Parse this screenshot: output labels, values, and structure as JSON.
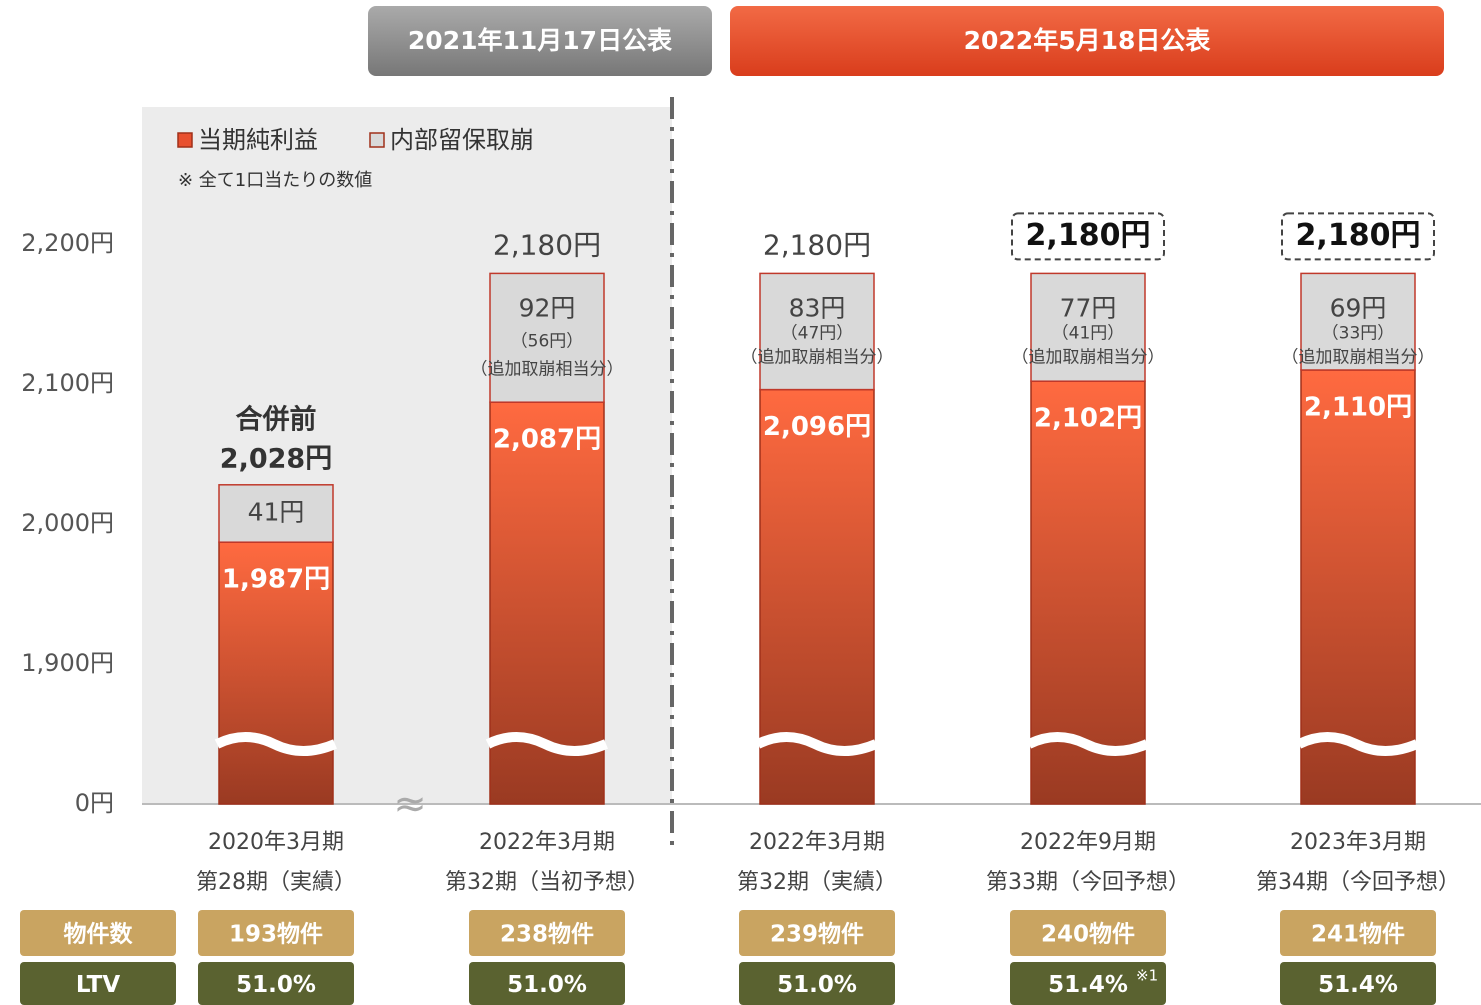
{
  "headers": [
    "2021年11月17日公表",
    "2022年5月18日公表"
  ],
  "chart_data": {
    "type": "stacked_bar",
    "note": "※ 全て1口当たりの数値",
    "categories": [
      "2020年3月期",
      "2022年3月期",
      "2022年3月期",
      "2022年9月期",
      "2023年3月期"
    ],
    "category_sublabels": [
      "第28期（実績）",
      "第32期（当初予想）",
      "第32期（実績）",
      "第33期（今回予想）",
      "第34期（今回予想）"
    ],
    "series": [
      {
        "name": "当期純利益",
        "color": "#e8502f",
        "values": [
          1987,
          2087,
          2096,
          2102,
          2110
        ],
        "value_labels": [
          "1,987円",
          "2,087円",
          "2,096円",
          "2,102円",
          "2,110円"
        ]
      },
      {
        "name": "内部留保取崩",
        "color": "#d9d9d9",
        "values": [
          41,
          92,
          83,
          77,
          69
        ],
        "value_labels": [
          "41円",
          "92円",
          "83円",
          "77円",
          "69円"
        ],
        "sub_labels": [
          null,
          "（56円）",
          "（47円）",
          "（41円）",
          "（33円）"
        ],
        "additional_label": "（追加取崩相当分）"
      }
    ],
    "totals": {
      "values": [
        2028,
        2180,
        2180,
        2180,
        2180
      ],
      "value_labels": [
        "2,028円",
        "2,180円",
        "2,180円",
        "2,180円",
        "2,180円"
      ],
      "pre_merger_label": "合併前"
    },
    "ylim": [
      0,
      2240
    ],
    "axis_break": [
      0,
      1800
    ],
    "yticks": [
      {
        "value": 0,
        "label": "0円"
      },
      {
        "value": 1900,
        "label": "1,900円"
      },
      {
        "value": 2000,
        "label": "2,000円"
      },
      {
        "value": 2100,
        "label": "2,100円"
      },
      {
        "value": 2200,
        "label": "2,200円"
      }
    ]
  },
  "table": {
    "rows": [
      {
        "header": "物件数",
        "cells": [
          "193物件",
          "238物件",
          "239物件",
          "240物件",
          "241物件"
        ],
        "notes": [
          null,
          null,
          null,
          null,
          null
        ]
      },
      {
        "header": "LTV",
        "cells": [
          "51.0%",
          "51.0%",
          "51.0%",
          "51.4%",
          "51.4%"
        ],
        "notes": [
          null,
          null,
          null,
          "※1",
          null
        ]
      }
    ]
  }
}
